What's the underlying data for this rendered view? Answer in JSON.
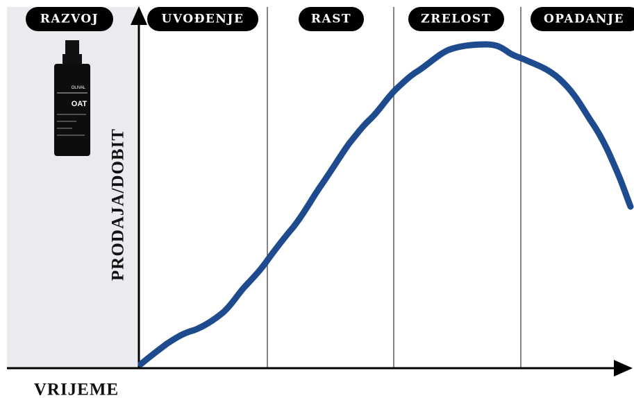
{
  "stages": [
    "RAZVOJ",
    "UVOĐENJE",
    "RAST",
    "ZRELOST",
    "OPADANJE"
  ],
  "y_axis_label": "PRODAJA/DOBIT",
  "x_axis_label": "VRIJEME",
  "product": {
    "brand": "OLIVAL",
    "name": "OAT"
  }
}
